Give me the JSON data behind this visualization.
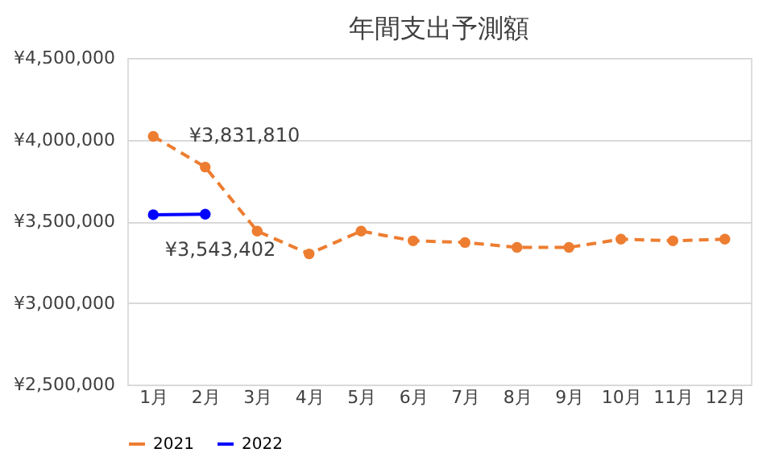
{
  "chart_data": {
    "type": "line",
    "title": "年間支出予測額",
    "categories": [
      "1月",
      "2月",
      "3月",
      "4月",
      "5月",
      "6月",
      "7月",
      "8月",
      "9月",
      "10月",
      "11月",
      "12月"
    ],
    "series": [
      {
        "name": "2021",
        "color": "#ed7d31",
        "line_style": "dashed",
        "values": [
          4020000,
          3831810,
          3440000,
          3300000,
          3440000,
          3380000,
          3370000,
          3340000,
          3340000,
          3390000,
          3380000,
          3390000
        ],
        "value_labels": [
          null,
          "¥3,831,810",
          null,
          null,
          null,
          null,
          null,
          null,
          null,
          null,
          null,
          null
        ]
      },
      {
        "name": "2022",
        "color": "#0000ff",
        "line_style": "solid",
        "values": [
          3540000,
          3543402,
          null,
          null,
          null,
          null,
          null,
          null,
          null,
          null,
          null,
          null
        ],
        "value_labels": [
          null,
          "¥3,543,402",
          null,
          null,
          null,
          null,
          null,
          null,
          null,
          null,
          null,
          null
        ]
      }
    ],
    "ylim": [
      2500000,
      4500000
    ],
    "yticks": [
      {
        "value": 2500000,
        "label": "¥2,500,000"
      },
      {
        "value": 3000000,
        "label": "¥3,000,000"
      },
      {
        "value": 3500000,
        "label": "¥3,500,000"
      },
      {
        "value": 4000000,
        "label": "¥4,000,000"
      },
      {
        "value": 4500000,
        "label": "¥4,500,000"
      }
    ],
    "grid": "y",
    "legend": "bottom",
    "marker": "circle"
  }
}
